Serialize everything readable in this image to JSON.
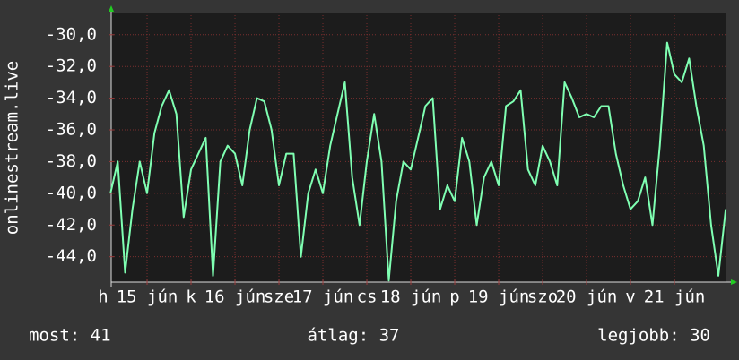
{
  "chart_data": {
    "type": "line",
    "ylabel": "onlinestream.live",
    "color": "#7fffb2",
    "grid": true,
    "x": [
      2,
      4,
      6,
      8,
      10,
      12,
      14,
      16,
      18,
      20,
      22,
      24,
      26,
      28,
      30,
      32,
      34,
      36,
      38,
      40,
      42,
      44,
      46,
      48,
      50,
      52,
      54,
      56,
      58,
      60,
      62,
      64,
      66,
      68,
      70,
      72,
      74,
      76,
      78,
      80,
      82,
      84,
      86,
      88,
      90,
      92,
      94,
      96,
      98,
      100,
      102,
      104,
      106,
      108,
      110,
      112,
      114,
      116,
      118,
      120,
      122,
      124,
      126,
      128,
      130,
      132,
      134,
      136,
      138,
      140,
      142,
      144,
      146,
      148,
      150,
      152,
      154,
      156,
      158,
      160,
      162,
      164,
      166,
      168,
      170
    ],
    "values": [
      -40,
      -38,
      -45,
      -41,
      -38,
      -40,
      -36.2,
      -34.5,
      -33.5,
      -35,
      -41.5,
      -38.5,
      -37.5,
      -36.5,
      -45.2,
      -38,
      -37,
      -37.5,
      -39.5,
      -36,
      -34,
      -34.2,
      -36,
      -39.5,
      -37.5,
      -37.5,
      -44,
      -40,
      -38.5,
      -40,
      -37,
      -35,
      -33,
      -39,
      -42,
      -38,
      -35,
      -38,
      -45.5,
      -40.5,
      -38,
      -38.5,
      -36.5,
      -34.5,
      -34,
      -41,
      -39.5,
      -40.5,
      -36.5,
      -38,
      -42,
      -39,
      -38,
      -39.5,
      -34.5,
      -34.2,
      -33.5,
      -38.5,
      -39.5,
      -37,
      -38,
      -39.5,
      -33,
      -34,
      -35.2,
      -35,
      -35.2,
      -34.5,
      -34.5,
      -37.5,
      -39.5,
      -41,
      -40.5,
      -39,
      -42,
      -37,
      -30.5,
      -32.5,
      -33,
      -31.5,
      -34.5,
      -37,
      -42,
      -45.2,
      -41
    ],
    "xlim": [
      2.2,
      170.2
    ],
    "ylim": [
      -45.6,
      -28.6
    ],
    "yticks": [
      {
        "value": -30,
        "label": "-30,0"
      },
      {
        "value": -32,
        "label": "-32,0"
      },
      {
        "value": -34,
        "label": "-34,0"
      },
      {
        "value": -36,
        "label": "-36,0"
      },
      {
        "value": -38,
        "label": "-38,0"
      },
      {
        "value": -40,
        "label": "-40,0"
      },
      {
        "value": -42,
        "label": "-42,0"
      },
      {
        "value": -44,
        "label": "-44,0"
      }
    ],
    "xticks": [
      {
        "value": 0,
        "label": "h"
      },
      {
        "value": 12,
        "label": "15 jún"
      },
      {
        "value": 24,
        "label": "k"
      },
      {
        "value": 36,
        "label": "16 jún"
      },
      {
        "value": 48,
        "label": "sze"
      },
      {
        "value": 60,
        "label": "17 jún"
      },
      {
        "value": 72,
        "label": "cs"
      },
      {
        "value": 84,
        "label": "18 jún"
      },
      {
        "value": 96,
        "label": "p"
      },
      {
        "value": 108,
        "label": "19 jún"
      },
      {
        "value": 120,
        "label": "szo"
      },
      {
        "value": 132,
        "label": "20 jún"
      },
      {
        "value": 144,
        "label": "v"
      },
      {
        "value": 156,
        "label": "21 jún"
      }
    ],
    "footer": [
      "most: 41",
      "átlag: 37",
      "legjobb: 30"
    ]
  }
}
